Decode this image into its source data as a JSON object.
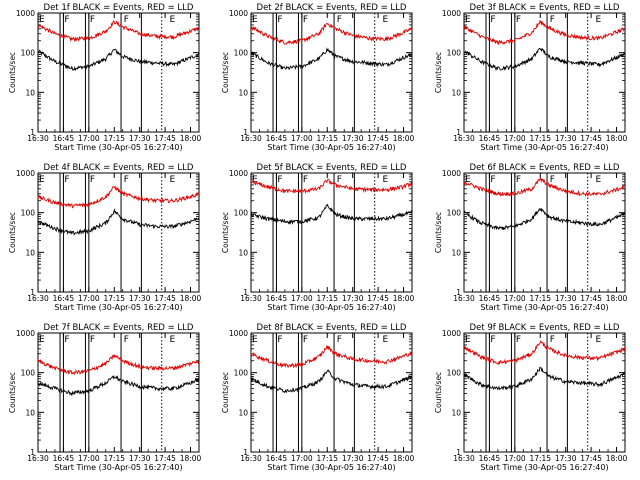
{
  "figure": {
    "start_time_label": "Start Time (30-Apr-05 16:27:40)",
    "y_axis_label": "Counts/sec",
    "x_tick_labels": [
      "16:30",
      "16:45",
      "17:00",
      "17:15",
      "17:30",
      "17:45",
      "18:00"
    ],
    "y_tick_labels": [
      "1",
      "10",
      "100",
      "1000"
    ],
    "colors": {
      "events": "#000000",
      "lld": "#e00000",
      "background": "#ffffff"
    }
  },
  "chart_data": [
    {
      "type": "line",
      "title": "Det 1f BLACK = Events, RED = LLD",
      "xlabel": "Start Time (30-Apr-05 16:27:40)",
      "ylabel": "Counts/sec",
      "yscale": "log",
      "ylim": [
        1,
        1000
      ],
      "xlim": [
        "16:30",
        "18:05"
      ],
      "x": [
        "16:30",
        "16:40",
        "16:50",
        "17:00",
        "17:10",
        "17:15",
        "17:20",
        "17:30",
        "17:40",
        "17:50",
        "18:00",
        "18:05"
      ],
      "series": [
        {
          "name": "Events",
          "color": "#000000",
          "values": [
            110,
            60,
            40,
            45,
            70,
            120,
            80,
            60,
            55,
            50,
            75,
            90
          ]
        },
        {
          "name": "LLD",
          "color": "#e00000",
          "values": [
            500,
            300,
            220,
            230,
            350,
            600,
            450,
            300,
            260,
            250,
            350,
            420
          ]
        }
      ],
      "markers": {
        "solid_times": [
          "16:43",
          "16:45",
          "16:58",
          "17:00",
          "17:19",
          "17:31"
        ],
        "dotted_times": [
          "17:43"
        ],
        "letter_times": [
          "16:30",
          "16:45",
          "17:00",
          "17:20",
          "17:47"
        ],
        "letters": [
          "E",
          "F",
          "F",
          "F",
          "E"
        ]
      }
    },
    {
      "type": "line",
      "title": "Det 2f BLACK = Events, RED = LLD",
      "xlabel": "Start Time (30-Apr-05 16:27:40)",
      "ylabel": "Counts/sec",
      "yscale": "log",
      "ylim": [
        1,
        1000
      ],
      "xlim": [
        "16:30",
        "18:05"
      ],
      "x": [
        "16:30",
        "16:40",
        "16:50",
        "17:00",
        "17:10",
        "17:15",
        "17:20",
        "17:30",
        "17:40",
        "17:50",
        "18:00",
        "18:05"
      ],
      "series": [
        {
          "name": "Events",
          "color": "#000000",
          "values": [
            100,
            55,
            40,
            45,
            70,
            120,
            80,
            60,
            55,
            50,
            75,
            90
          ]
        },
        {
          "name": "LLD",
          "color": "#e00000",
          "values": [
            450,
            260,
            180,
            200,
            300,
            550,
            400,
            270,
            230,
            220,
            320,
            400
          ]
        }
      ],
      "markers": {
        "solid_times": [
          "16:43",
          "16:45",
          "16:58",
          "17:00",
          "17:19",
          "17:31"
        ],
        "dotted_times": [
          "17:43"
        ],
        "letter_times": [
          "16:30",
          "16:45",
          "17:00",
          "17:20",
          "17:47"
        ],
        "letters": [
          "E",
          "F",
          "F",
          "F",
          "E"
        ]
      }
    },
    {
      "type": "line",
      "title": "Det 3f BLACK = Events, RED = LLD",
      "xlabel": "Start Time (30-Apr-05 16:27:40)",
      "ylabel": "Counts/sec",
      "yscale": "log",
      "ylim": [
        1,
        1000
      ],
      "xlim": [
        "16:30",
        "18:05"
      ],
      "x": [
        "16:30",
        "16:40",
        "16:50",
        "17:00",
        "17:10",
        "17:15",
        "17:20",
        "17:30",
        "17:40",
        "17:50",
        "18:00",
        "18:05"
      ],
      "series": [
        {
          "name": "Events",
          "color": "#000000",
          "values": [
            110,
            60,
            40,
            45,
            70,
            130,
            80,
            60,
            55,
            50,
            75,
            95
          ]
        },
        {
          "name": "LLD",
          "color": "#e00000",
          "values": [
            450,
            260,
            180,
            200,
            320,
            600,
            420,
            280,
            240,
            230,
            330,
            410
          ]
        }
      ],
      "markers": {
        "solid_times": [
          "16:43",
          "16:45",
          "16:58",
          "17:00",
          "17:19",
          "17:31"
        ],
        "dotted_times": [
          "17:43"
        ],
        "letter_times": [
          "16:30",
          "16:45",
          "17:00",
          "17:20",
          "17:47"
        ],
        "letters": [
          "E",
          "F",
          "F",
          "F",
          "E"
        ]
      }
    },
    {
      "type": "line",
      "title": "Det 4f BLACK = Events, RED = LLD",
      "xlabel": "Start Time (30-Apr-05 16:27:40)",
      "ylabel": "Counts/sec",
      "yscale": "log",
      "ylim": [
        1,
        1000
      ],
      "xlim": [
        "16:30",
        "18:05"
      ],
      "x": [
        "16:30",
        "16:40",
        "16:50",
        "17:00",
        "17:10",
        "17:15",
        "17:20",
        "17:30",
        "17:40",
        "17:50",
        "18:00",
        "18:05"
      ],
      "series": [
        {
          "name": "Events",
          "color": "#000000",
          "values": [
            60,
            40,
            30,
            35,
            55,
            110,
            70,
            50,
            45,
            45,
            60,
            75
          ]
        },
        {
          "name": "LLD",
          "color": "#e00000",
          "values": [
            250,
            180,
            150,
            160,
            250,
            450,
            300,
            230,
            200,
            200,
            250,
            300
          ]
        }
      ],
      "markers": {
        "solid_times": [
          "16:43",
          "16:45",
          "16:58",
          "17:00",
          "17:19",
          "17:31"
        ],
        "dotted_times": [
          "17:43"
        ],
        "letter_times": [
          "16:30",
          "16:45",
          "17:00",
          "17:20",
          "17:47"
        ],
        "letters": [
          "E",
          "F",
          "F",
          "F",
          "E"
        ]
      }
    },
    {
      "type": "line",
      "title": "Det 5f BLACK = Events, RED = LLD",
      "xlabel": "Start Time (30-Apr-05 16:27:40)",
      "ylabel": "Counts/sec",
      "yscale": "log",
      "ylim": [
        1,
        1000
      ],
      "xlim": [
        "16:30",
        "18:05"
      ],
      "x": [
        "16:30",
        "16:40",
        "16:50",
        "17:00",
        "17:10",
        "17:15",
        "17:20",
        "17:30",
        "17:40",
        "17:50",
        "18:00",
        "18:05"
      ],
      "series": [
        {
          "name": "Events",
          "color": "#000000",
          "values": [
            90,
            70,
            60,
            60,
            75,
            150,
            90,
            70,
            70,
            70,
            90,
            100
          ]
        },
        {
          "name": "LLD",
          "color": "#e00000",
          "values": [
            600,
            450,
            350,
            350,
            400,
            650,
            500,
            400,
            380,
            380,
            450,
            550
          ]
        }
      ],
      "markers": {
        "solid_times": [
          "16:43",
          "16:45",
          "16:58",
          "17:00",
          "17:19",
          "17:31"
        ],
        "dotted_times": [
          "17:43"
        ],
        "letter_times": [
          "16:30",
          "16:45",
          "17:00",
          "17:20",
          "17:47"
        ],
        "letters": [
          "E",
          "F",
          "F",
          "F",
          "E"
        ]
      }
    },
    {
      "type": "line",
      "title": "Det 6f BLACK = Events, RED = LLD",
      "xlabel": "Start Time (30-Apr-05 16:27:40)",
      "ylabel": "Counts/sec",
      "yscale": "log",
      "ylim": [
        1,
        1000
      ],
      "xlim": [
        "16:30",
        "18:05"
      ],
      "x": [
        "16:30",
        "16:40",
        "16:50",
        "17:00",
        "17:10",
        "17:15",
        "17:20",
        "17:30",
        "17:40",
        "17:50",
        "18:00",
        "18:05"
      ],
      "series": [
        {
          "name": "Events",
          "color": "#000000",
          "values": [
            100,
            55,
            40,
            45,
            70,
            130,
            80,
            60,
            55,
            50,
            75,
            95
          ]
        },
        {
          "name": "LLD",
          "color": "#e00000",
          "values": [
            600,
            400,
            300,
            300,
            400,
            700,
            500,
            350,
            300,
            290,
            380,
            450
          ]
        }
      ],
      "markers": {
        "solid_times": [
          "16:43",
          "16:45",
          "16:58",
          "17:00",
          "17:19",
          "17:31"
        ],
        "dotted_times": [
          "17:43"
        ],
        "letter_times": [
          "16:30",
          "16:45",
          "17:00",
          "17:20",
          "17:47"
        ],
        "letters": [
          "E",
          "F",
          "F",
          "F",
          "E"
        ]
      }
    },
    {
      "type": "line",
      "title": "Det 7f BLACK = Events, RED = LLD",
      "xlabel": "Start Time (30-Apr-05 16:27:40)",
      "ylabel": "Counts/sec",
      "yscale": "log",
      "ylim": [
        1,
        1000
      ],
      "xlim": [
        "16:30",
        "18:05"
      ],
      "x": [
        "16:30",
        "16:40",
        "16:50",
        "17:00",
        "17:10",
        "17:15",
        "17:20",
        "17:30",
        "17:40",
        "17:50",
        "18:00",
        "18:05"
      ],
      "series": [
        {
          "name": "Events",
          "color": "#000000",
          "values": [
            55,
            40,
            30,
            35,
            55,
            80,
            60,
            45,
            40,
            40,
            55,
            70
          ]
        },
        {
          "name": "LLD",
          "color": "#e00000",
          "values": [
            200,
            130,
            100,
            110,
            170,
            270,
            200,
            140,
            130,
            130,
            170,
            200
          ]
        }
      ],
      "markers": {
        "solid_times": [
          "16:43",
          "16:45",
          "16:58",
          "17:00",
          "17:19",
          "17:31"
        ],
        "dotted_times": [
          "17:43"
        ],
        "letter_times": [
          "16:30",
          "16:45",
          "17:00",
          "17:20",
          "17:47"
        ],
        "letters": [
          "E",
          "F",
          "F",
          "F",
          "E"
        ]
      }
    },
    {
      "type": "line",
      "title": "Det 8f BLACK = Events, RED = LLD",
      "xlabel": "Start Time (30-Apr-05 16:27:40)",
      "ylabel": "Counts/sec",
      "yscale": "log",
      "ylim": [
        1,
        1000
      ],
      "xlim": [
        "16:30",
        "18:05"
      ],
      "x": [
        "16:30",
        "16:40",
        "16:50",
        "17:00",
        "17:10",
        "17:15",
        "17:20",
        "17:30",
        "17:40",
        "17:50",
        "18:00",
        "18:05"
      ],
      "series": [
        {
          "name": "Events",
          "color": "#000000",
          "values": [
            70,
            45,
            35,
            40,
            60,
            110,
            70,
            50,
            45,
            45,
            65,
            80
          ]
        },
        {
          "name": "LLD",
          "color": "#e00000",
          "values": [
            300,
            200,
            150,
            160,
            250,
            450,
            300,
            220,
            200,
            190,
            260,
            320
          ]
        }
      ],
      "markers": {
        "solid_times": [
          "16:43",
          "16:45",
          "16:58",
          "17:00",
          "17:19",
          "17:31"
        ],
        "dotted_times": [
          "17:43"
        ],
        "letter_times": [
          "16:30",
          "16:45",
          "17:00",
          "17:20",
          "17:47"
        ],
        "letters": [
          "E",
          "F",
          "F",
          "F",
          "E"
        ]
      }
    },
    {
      "type": "line",
      "title": "Det 9f BLACK = Events, RED = LLD",
      "xlabel": "Start Time (30-Apr-05 16:27:40)",
      "ylabel": "Counts/sec",
      "yscale": "log",
      "ylim": [
        1,
        1000
      ],
      "xlim": [
        "16:30",
        "18:05"
      ],
      "x": [
        "16:30",
        "16:40",
        "16:50",
        "17:00",
        "17:10",
        "17:15",
        "17:20",
        "17:30",
        "17:40",
        "17:50",
        "18:00",
        "18:05"
      ],
      "series": [
        {
          "name": "Events",
          "color": "#000000",
          "values": [
            90,
            50,
            40,
            45,
            70,
            130,
            80,
            60,
            55,
            50,
            75,
            95
          ]
        },
        {
          "name": "LLD",
          "color": "#e00000",
          "values": [
            450,
            250,
            180,
            200,
            300,
            600,
            400,
            270,
            240,
            230,
            330,
            400
          ]
        }
      ],
      "markers": {
        "solid_times": [
          "16:43",
          "16:45",
          "16:58",
          "17:00",
          "17:19",
          "17:31"
        ],
        "dotted_times": [
          "17:43"
        ],
        "letter_times": [
          "16:30",
          "16:45",
          "17:00",
          "17:20",
          "17:47"
        ],
        "letters": [
          "E",
          "F",
          "F",
          "F",
          "E"
        ]
      }
    }
  ]
}
